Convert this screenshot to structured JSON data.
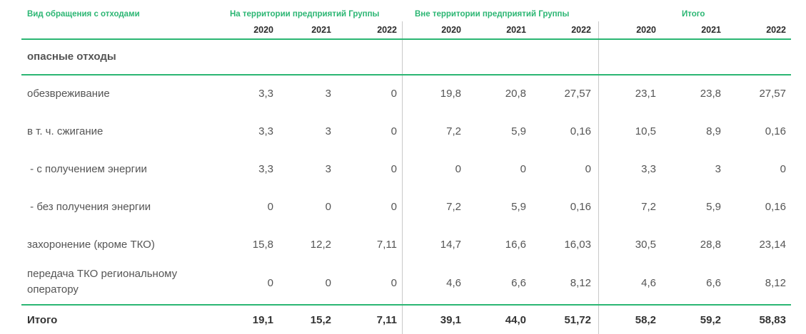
{
  "header": {
    "col_label": "Вид обращения с отходами",
    "group1": "На территории предприятий Группы",
    "group2": "Вне территории предприятий Группы",
    "group3": "Итого",
    "years": [
      "2020",
      "2021",
      "2022",
      "2020",
      "2021",
      "2022",
      "2020",
      "2021",
      "2022"
    ]
  },
  "section": "опасные отходы",
  "rows": [
    {
      "label": "обезвреживание",
      "values": [
        "3,3",
        "3",
        "0",
        "19,8",
        "20,8",
        "27,57",
        "23,1",
        "23,8",
        "27,57"
      ]
    },
    {
      "label": "в т. ч. сжигание",
      "values": [
        "3,3",
        "3",
        "0",
        "7,2",
        "5,9",
        "0,16",
        "10,5",
        "8,9",
        "0,16"
      ]
    },
    {
      "label": " - с получением энергии",
      "values": [
        "3,3",
        "3",
        "0",
        "0",
        "0",
        "0",
        "3,3",
        "3",
        "0"
      ]
    },
    {
      "label": " - без получения энергии",
      "values": [
        "0",
        "0",
        "0",
        "7,2",
        "5,9",
        "0,16",
        "7,2",
        "5,9",
        "0,16"
      ]
    },
    {
      "label": "захоронение (кроме ТКО)",
      "values": [
        "15,8",
        "12,2",
        "7,11",
        "14,7",
        "16,6",
        "16,03",
        "30,5",
        "28,8",
        "23,14"
      ]
    },
    {
      "label_line1": "передача ТКО региональному",
      "label_line2": "оператору",
      "values": [
        "0",
        "0",
        "0",
        "4,6",
        "6,6",
        "8,12",
        "4,6",
        "6,6",
        "8,12"
      ]
    }
  ],
  "total": {
    "label": "Итого",
    "values": [
      "19,1",
      "15,2",
      "7,11",
      "39,1",
      "44,0",
      "51,72",
      "58,2",
      "59,2",
      "58,83"
    ]
  }
}
